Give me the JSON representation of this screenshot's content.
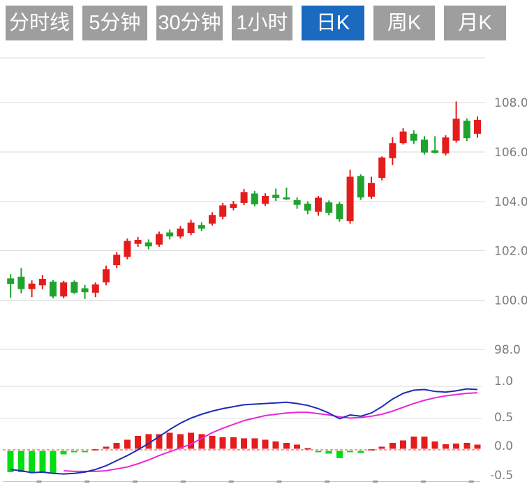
{
  "toolbar": {
    "tabs": [
      {
        "label": "分时线",
        "active": false
      },
      {
        "label": "5分钟",
        "active": false
      },
      {
        "label": "30分钟",
        "active": false
      },
      {
        "label": "1小时",
        "active": false
      },
      {
        "label": "日K",
        "active": true
      },
      {
        "label": "周K",
        "active": false
      },
      {
        "label": "月K",
        "active": false
      }
    ]
  },
  "colors": {
    "tab_bg": "#9e9e9e",
    "tab_active_bg": "#1a6bc0",
    "tab_text": "#ffffff",
    "up": "#e51c1c",
    "down": "#1fa32e",
    "macd_up": "#e51c1c",
    "macd_down": "#00dd11",
    "dif_line": "#1c2cb8",
    "dea_line": "#e928d5",
    "grid": "#d9d9d9",
    "zero_line": "#ff5a5a",
    "axis_line": "#c8c8c8",
    "axis_tick": "#9a9a9a",
    "axis_text": "#7b7b7b"
  },
  "chart_data": {
    "type": "candlestick",
    "title": "",
    "price_panel": {
      "ylim": [
        98,
        110
      ],
      "grid": true,
      "yticks": [
        {
          "value": 108,
          "label": "108.0"
        },
        {
          "value": 106,
          "label": "106.0"
        },
        {
          "value": 104,
          "label": "104.0"
        },
        {
          "value": 102,
          "label": "102.0"
        },
        {
          "value": 100,
          "label": "100.0"
        },
        {
          "value": 98,
          "label": "98.0"
        }
      ]
    },
    "macd_panel": {
      "ylim": [
        -0.5,
        1.0
      ],
      "zero_line": true,
      "yticks": [
        {
          "value": 1.0,
          "label": "1.0"
        },
        {
          "value": 0.5,
          "label": "0.5"
        },
        {
          "value": 0.0,
          "label": "0.0"
        },
        {
          "value": -0.5,
          "label": "-0.5"
        }
      ]
    },
    "candles": {
      "columns": [
        "body_low",
        "body_high",
        "wick_low",
        "wick_high",
        "direction"
      ],
      "rows": [
        [
          100.66,
          100.88,
          100.1,
          101.05,
          "down"
        ],
        [
          100.45,
          100.95,
          100.28,
          101.3,
          "down"
        ],
        [
          100.45,
          100.67,
          100.12,
          100.8,
          "up"
        ],
        [
          100.6,
          100.86,
          100.45,
          101.02,
          "up"
        ],
        [
          100.15,
          100.75,
          100.08,
          100.82,
          "down"
        ],
        [
          100.15,
          100.72,
          100.08,
          100.78,
          "up"
        ],
        [
          100.3,
          100.74,
          100.25,
          100.8,
          "down"
        ],
        [
          100.32,
          100.48,
          100.05,
          100.62,
          "down"
        ],
        [
          100.3,
          100.64,
          100.12,
          100.72,
          "up"
        ],
        [
          100.72,
          101.25,
          100.6,
          101.4,
          "up"
        ],
        [
          101.42,
          101.84,
          101.3,
          101.95,
          "up"
        ],
        [
          101.75,
          102.4,
          101.65,
          102.5,
          "up"
        ],
        [
          102.28,
          102.44,
          102.16,
          102.56,
          "up"
        ],
        [
          102.18,
          102.34,
          102.06,
          102.46,
          "down"
        ],
        [
          102.25,
          102.68,
          102.16,
          102.78,
          "up"
        ],
        [
          102.58,
          102.74,
          102.46,
          102.86,
          "down"
        ],
        [
          102.58,
          102.9,
          102.5,
          103.0,
          "up"
        ],
        [
          102.72,
          103.14,
          102.63,
          103.26,
          "up"
        ],
        [
          102.9,
          103.04,
          102.8,
          103.16,
          "down"
        ],
        [
          103.1,
          103.45,
          103.02,
          103.56,
          "up"
        ],
        [
          103.38,
          103.84,
          103.28,
          103.94,
          "up"
        ],
        [
          103.74,
          103.9,
          103.64,
          104.02,
          "up"
        ],
        [
          103.94,
          104.38,
          103.85,
          104.5,
          "up"
        ],
        [
          103.88,
          104.32,
          103.8,
          104.42,
          "down"
        ],
        [
          103.9,
          104.22,
          103.82,
          104.33,
          "up"
        ],
        [
          104.14,
          104.27,
          104.02,
          104.52,
          "down"
        ],
        [
          104.08,
          104.16,
          104.06,
          104.56,
          "down"
        ],
        [
          103.86,
          104.05,
          103.7,
          104.16,
          "down"
        ],
        [
          103.63,
          103.91,
          103.48,
          104.0,
          "down"
        ],
        [
          103.58,
          104.15,
          103.42,
          104.22,
          "up"
        ],
        [
          103.54,
          103.96,
          103.44,
          104.04,
          "down"
        ],
        [
          103.28,
          103.9,
          103.18,
          103.98,
          "down"
        ],
        [
          103.2,
          105.0,
          103.1,
          105.28,
          "up"
        ],
        [
          104.16,
          105.03,
          104.06,
          105.1,
          "down"
        ],
        [
          104.19,
          104.75,
          104.1,
          105.0,
          "up"
        ],
        [
          104.95,
          105.78,
          104.85,
          105.82,
          "up"
        ],
        [
          105.75,
          106.36,
          105.47,
          106.6,
          "up"
        ],
        [
          106.36,
          106.83,
          106.3,
          106.97,
          "up"
        ],
        [
          106.46,
          106.74,
          106.32,
          106.88,
          "down"
        ],
        [
          105.98,
          106.5,
          105.9,
          106.64,
          "down"
        ],
        [
          105.97,
          106.07,
          105.94,
          106.64,
          "down"
        ],
        [
          105.94,
          106.59,
          105.86,
          106.68,
          "up"
        ],
        [
          106.46,
          107.35,
          106.38,
          108.05,
          "up"
        ],
        [
          106.56,
          107.27,
          106.45,
          107.36,
          "down"
        ],
        [
          106.74,
          107.3,
          106.58,
          107.44,
          "up"
        ]
      ]
    },
    "macd": {
      "histogram": [
        -0.35,
        -0.35,
        -0.36,
        -0.35,
        -0.36,
        -0.07,
        -0.02,
        -0.02,
        0.01,
        0.05,
        0.11,
        0.16,
        0.22,
        0.25,
        0.25,
        0.27,
        0.25,
        0.27,
        0.25,
        0.22,
        0.2,
        0.2,
        0.18,
        0.18,
        0.16,
        0.13,
        0.11,
        0.08,
        0.03,
        -0.02,
        -0.06,
        -0.13,
        -0.03,
        -0.05,
        0.01,
        0.05,
        0.11,
        0.15,
        0.21,
        0.21,
        0.13,
        0.09,
        0.1,
        0.11,
        0.08
      ],
      "dif": [
        -0.31,
        -0.33,
        -0.36,
        -0.35,
        -0.37,
        -0.38,
        -0.37,
        -0.35,
        -0.31,
        -0.25,
        -0.17,
        -0.09,
        0.0,
        0.1,
        0.21,
        0.32,
        0.42,
        0.5,
        0.56,
        0.61,
        0.65,
        0.68,
        0.71,
        0.72,
        0.73,
        0.74,
        0.75,
        0.73,
        0.7,
        0.65,
        0.58,
        0.49,
        0.55,
        0.53,
        0.58,
        0.68,
        0.8,
        0.89,
        0.94,
        0.95,
        0.92,
        0.91,
        0.93,
        0.96,
        0.95
      ],
      "dea": [
        null,
        null,
        null,
        null,
        null,
        -0.33,
        -0.34,
        -0.34,
        -0.34,
        -0.33,
        -0.3,
        -0.27,
        -0.22,
        -0.16,
        -0.09,
        -0.03,
        0.03,
        0.09,
        0.18,
        0.27,
        0.34,
        0.4,
        0.46,
        0.5,
        0.54,
        0.56,
        0.58,
        0.59,
        0.59,
        0.57,
        0.55,
        0.52,
        0.5,
        0.51,
        0.53,
        0.56,
        0.61,
        0.67,
        0.73,
        0.78,
        0.82,
        0.85,
        0.87,
        0.89,
        0.9
      ]
    }
  }
}
